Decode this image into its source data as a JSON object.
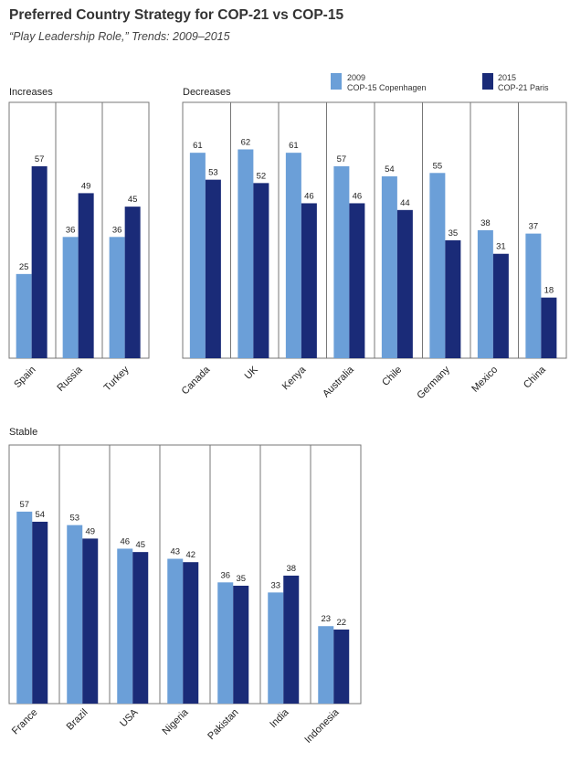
{
  "title": "Preferred Country Strategy for COP-21 vs COP-15",
  "subtitle": "“Play Leadership Role,” Trends: 2009–2015",
  "colors": {
    "series_2009": "#6b9fd8",
    "series_2015": "#1a2b78",
    "border": "#777777"
  },
  "legend": [
    {
      "year": "2009",
      "label": "COP-15 Copenhagen"
    },
    {
      "year": "2015",
      "label": "COP-21 Paris"
    }
  ],
  "chart_data": [
    {
      "type": "bar",
      "title": "Increases",
      "categories": [
        "Spain",
        "Russia",
        "Turkey"
      ],
      "series": [
        {
          "name": "2009 COP-15 Copenhagen",
          "values": [
            25,
            36,
            36
          ]
        },
        {
          "name": "2015 COP-21 Paris",
          "values": [
            57,
            49,
            45
          ]
        }
      ],
      "ylim": [
        0,
        70
      ]
    },
    {
      "type": "bar",
      "title": "Decreases",
      "categories": [
        "Canada",
        "UK",
        "Kenya",
        "Australia",
        "Chile",
        "Germany",
        "Mexico",
        "China"
      ],
      "series": [
        {
          "name": "2009 COP-15 Copenhagen",
          "values": [
            61,
            62,
            61,
            57,
            54,
            55,
            38,
            37
          ]
        },
        {
          "name": "2015 COP-21 Paris",
          "values": [
            53,
            52,
            46,
            46,
            44,
            35,
            31,
            18
          ]
        }
      ],
      "ylim": [
        0,
        70
      ]
    },
    {
      "type": "bar",
      "title": "Stable",
      "categories": [
        "France",
        "Brazil",
        "USA",
        "Nigeria",
        "Pakistan",
        "India",
        "Indonesia"
      ],
      "series": [
        {
          "name": "2009 COP-15 Copenhagen",
          "values": [
            57,
            53,
            46,
            43,
            36,
            33,
            23
          ]
        },
        {
          "name": "2015 COP-21 Paris",
          "values": [
            54,
            49,
            45,
            42,
            35,
            38,
            22
          ]
        }
      ],
      "ylim": [
        0,
        70
      ]
    }
  ]
}
